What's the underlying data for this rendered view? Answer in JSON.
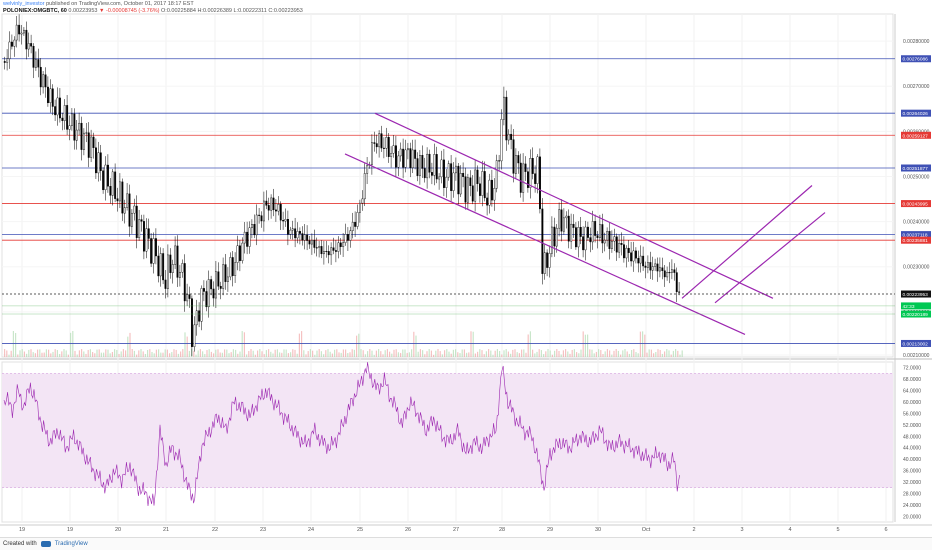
{
  "header": {
    "author": "welvinly_investor",
    "published": "published on TradingView.com, October 01, 2017 18:17 EST",
    "symbol": "POLONIEX:OMGBTC, 60",
    "last": "0.00223953",
    "change_arrow": "▼",
    "change": "-0.00008745 (-3.76%)",
    "o": "O:0.00225884",
    "h": "H:0.00226389",
    "l": "L:0.00222311",
    "c": "C:0.00223953"
  },
  "footer": {
    "created_with": "Created with",
    "brand": "TradingView"
  },
  "colors": {
    "candle": "#000000",
    "channel": "#9c27b0",
    "hline_blue": "#3f51b5",
    "hline_red": "#e53935",
    "hline_green": "#4caf50",
    "rsi_line": "#9c27b0",
    "rsi_band": "#f3e5f5",
    "current_price_box": "#111111",
    "green_box": "#00c853"
  },
  "chart_data": [
    {
      "type": "candlestick",
      "title": "",
      "x_tick_labels": [
        "19",
        "19",
        "20",
        "21",
        "22",
        "23",
        "24",
        "25",
        "26",
        "27",
        "28",
        "29",
        "30",
        "Oct",
        "2",
        "3",
        "4",
        "5",
        "6"
      ],
      "y_tick_labels": [
        "0.00280000",
        "0.00270000",
        "0.00260000",
        "0.00250000",
        "0.00240000",
        "0.00230000",
        "0.00220000",
        "0.00210000"
      ],
      "ylim": [
        0.0021,
        0.00286
      ],
      "horizontal_lines": [
        {
          "value": 0.00276086,
          "label": "0.00276086",
          "color": "blue"
        },
        {
          "value": 0.00264026,
          "label": "0.00264026",
          "color": "blue"
        },
        {
          "value": 0.00259127,
          "label": "0.00259127",
          "color": "red"
        },
        {
          "value": 0.00251877,
          "label": "0.00251877",
          "color": "blue"
        },
        {
          "value": 0.00243995,
          "label": "0.00243995",
          "color": "red"
        },
        {
          "value": 0.00237118,
          "label": "0.00237118",
          "color": "blue"
        },
        {
          "value": 0.00235881,
          "label": "0.00235881",
          "color": "red"
        },
        {
          "value": 0.00213002,
          "label": "0.00213002",
          "color": "blue"
        }
      ],
      "current_price": {
        "value": 0.00223953,
        "label": "0.00223953"
      },
      "green_markers": [
        {
          "value": 0.0022132,
          "label": "42:33"
        },
        {
          "value": 0.00220189,
          "label": "0.00220189"
        }
      ],
      "close_path": [
        [
          0,
          0.00273
        ],
        [
          8,
          0.00278
        ],
        [
          18,
          0.00283
        ],
        [
          28,
          0.00279
        ],
        [
          40,
          0.00272
        ],
        [
          52,
          0.00266
        ],
        [
          64,
          0.00263
        ],
        [
          76,
          0.0026
        ],
        [
          90,
          0.00257
        ],
        [
          102,
          0.0025
        ],
        [
          114,
          0.00247
        ],
        [
          126,
          0.00243
        ],
        [
          136,
          0.0024
        ],
        [
          146,
          0.00236
        ],
        [
          156,
          0.00232
        ],
        [
          164,
          0.00227
        ],
        [
          172,
          0.00232
        ],
        [
          180,
          0.00229
        ],
        [
          188,
          0.00222
        ],
        [
          192,
          0.00214
        ],
        [
          200,
          0.00223
        ],
        [
          210,
          0.00225
        ],
        [
          220,
          0.00227
        ],
        [
          232,
          0.0023
        ],
        [
          244,
          0.00236
        ],
        [
          256,
          0.0024
        ],
        [
          266,
          0.00244
        ],
        [
          276,
          0.00243
        ],
        [
          288,
          0.00238
        ],
        [
          300,
          0.00237
        ],
        [
          312,
          0.00235
        ],
        [
          324,
          0.00233
        ],
        [
          336,
          0.00234
        ],
        [
          348,
          0.00237
        ],
        [
          358,
          0.00242
        ],
        [
          366,
          0.00252
        ],
        [
          374,
          0.00258
        ],
        [
          384,
          0.00257
        ],
        [
          396,
          0.00254
        ],
        [
          408,
          0.00255
        ],
        [
          420,
          0.00252
        ],
        [
          432,
          0.00252
        ],
        [
          444,
          0.0025
        ],
        [
          456,
          0.0025
        ],
        [
          468,
          0.00247
        ],
        [
          478,
          0.00249
        ],
        [
          488,
          0.00245
        ],
        [
          496,
          0.0025
        ],
        [
          502,
          0.00266
        ],
        [
          510,
          0.00256
        ],
        [
          520,
          0.0025
        ],
        [
          530,
          0.00251
        ],
        [
          538,
          0.00251
        ],
        [
          542,
          0.00228
        ],
        [
          550,
          0.00235
        ],
        [
          560,
          0.00241
        ],
        [
          570,
          0.00238
        ],
        [
          582,
          0.00236
        ],
        [
          594,
          0.00238
        ],
        [
          606,
          0.00236
        ],
        [
          616,
          0.00235
        ],
        [
          626,
          0.00233
        ],
        [
          636,
          0.00232
        ],
        [
          646,
          0.0023
        ],
        [
          656,
          0.0023
        ],
        [
          666,
          0.00228
        ],
        [
          672,
          0.0023
        ],
        [
          676,
          0.00225
        ],
        [
          680,
          0.00224
        ]
      ],
      "channels": [
        {
          "from": [
            0.00255,
            345
          ],
          "to": [
            0.00215,
            745
          ],
          "group": "descending"
        },
        {
          "from": [
            0.00264,
            375
          ],
          "to": [
            0.00223,
            773
          ],
          "group": "descending"
        },
        {
          "from": [
            0.00223,
            682
          ],
          "to": [
            0.00248,
            812
          ],
          "group": "ascending"
        },
        {
          "from": [
            0.00222,
            715
          ],
          "to": [
            0.00242,
            825
          ],
          "group": "ascending"
        }
      ]
    },
    {
      "type": "line",
      "title": "",
      "series_name": "RSI",
      "y_tick_labels": [
        "72.0000",
        "68.0000",
        "64.0000",
        "60.0000",
        "56.0000",
        "52.0000",
        "48.0000",
        "44.0000",
        "40.0000",
        "36.0000",
        "32.0000",
        "28.0000",
        "24.0000",
        "20.0000"
      ],
      "ylim": [
        18,
        74
      ],
      "band": [
        30,
        70
      ],
      "values": [
        [
          0,
          55
        ],
        [
          6,
          62
        ],
        [
          12,
          57
        ],
        [
          18,
          64
        ],
        [
          24,
          58
        ],
        [
          30,
          66
        ],
        [
          36,
          60
        ],
        [
          42,
          52
        ],
        [
          50,
          46
        ],
        [
          58,
          50
        ],
        [
          66,
          44
        ],
        [
          74,
          48
        ],
        [
          82,
          43
        ],
        [
          90,
          38
        ],
        [
          98,
          34
        ],
        [
          106,
          30
        ],
        [
          114,
          36
        ],
        [
          122,
          33
        ],
        [
          130,
          38
        ],
        [
          138,
          30
        ],
        [
          146,
          28
        ],
        [
          154,
          24
        ],
        [
          160,
          50
        ],
        [
          166,
          38
        ],
        [
          172,
          44
        ],
        [
          180,
          40
        ],
        [
          188,
          30
        ],
        [
          194,
          26
        ],
        [
          202,
          45
        ],
        [
          210,
          50
        ],
        [
          218,
          55
        ],
        [
          226,
          50
        ],
        [
          234,
          60
        ],
        [
          242,
          58
        ],
        [
          250,
          55
        ],
        [
          258,
          60
        ],
        [
          266,
          64
        ],
        [
          274,
          60
        ],
        [
          282,
          56
        ],
        [
          290,
          52
        ],
        [
          298,
          48
        ],
        [
          306,
          45
        ],
        [
          314,
          50
        ],
        [
          322,
          46
        ],
        [
          330,
          44
        ],
        [
          338,
          48
        ],
        [
          346,
          55
        ],
        [
          354,
          62
        ],
        [
          360,
          66
        ],
        [
          366,
          72
        ],
        [
          372,
          68
        ],
        [
          378,
          64
        ],
        [
          384,
          68
        ],
        [
          390,
          62
        ],
        [
          396,
          58
        ],
        [
          402,
          52
        ],
        [
          410,
          60
        ],
        [
          418,
          56
        ],
        [
          426,
          50
        ],
        [
          434,
          54
        ],
        [
          442,
          48
        ],
        [
          450,
          46
        ],
        [
          458,
          50
        ],
        [
          466,
          42
        ],
        [
          474,
          46
        ],
        [
          482,
          44
        ],
        [
          490,
          48
        ],
        [
          496,
          50
        ],
        [
          502,
          72
        ],
        [
          508,
          60
        ],
        [
          516,
          54
        ],
        [
          524,
          50
        ],
        [
          532,
          48
        ],
        [
          538,
          40
        ],
        [
          544,
          30
        ],
        [
          550,
          42
        ],
        [
          560,
          46
        ],
        [
          570,
          44
        ],
        [
          580,
          48
        ],
        [
          590,
          46
        ],
        [
          600,
          50
        ],
        [
          610,
          44
        ],
        [
          620,
          46
        ],
        [
          630,
          44
        ],
        [
          640,
          42
        ],
        [
          650,
          40
        ],
        [
          660,
          42
        ],
        [
          668,
          38
        ],
        [
          674,
          40
        ],
        [
          678,
          30
        ],
        [
          680,
          36
        ]
      ]
    }
  ]
}
